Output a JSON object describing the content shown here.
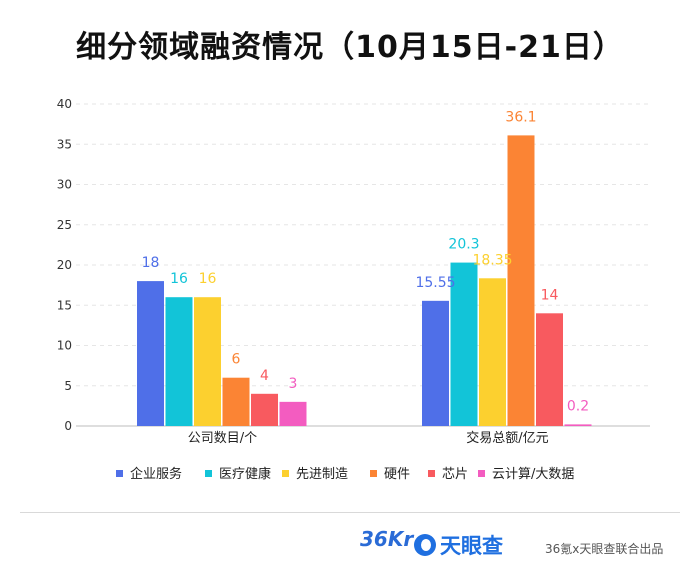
{
  "title": "细分领域融资情况（10月15日-21日）",
  "footer": {
    "logo_36kr": "36Kr",
    "logo_tyc": "天眼查",
    "credit": "36氪x天眼查联合出品"
  },
  "chart_data": {
    "type": "bar",
    "categories": [
      "公司数目/个",
      "交易总额/亿元"
    ],
    "series": [
      {
        "name": "企业服务",
        "color": "#4f6fe8",
        "values": [
          18,
          15.55
        ]
      },
      {
        "name": "医疗健康",
        "color": "#12c4d8",
        "values": [
          16,
          20.3
        ]
      },
      {
        "name": "先进制造",
        "color": "#fcd02f",
        "values": [
          16,
          18.35
        ]
      },
      {
        "name": "硬件",
        "color": "#fb8434",
        "values": [
          6,
          36.1
        ]
      },
      {
        "name": "芯片",
        "color": "#f85a5f",
        "values": [
          4,
          14
        ]
      },
      {
        "name": "云计算/大数据",
        "color": "#f35cc0",
        "values": [
          3,
          0.2
        ]
      }
    ],
    "data_labels": [
      [
        "18",
        "16",
        "16",
        "6",
        "4",
        "3"
      ],
      [
        "15.55",
        "20.3",
        "18.35",
        "36.1",
        "14",
        "0.2"
      ]
    ],
    "yticks": [
      "0",
      "5",
      "10",
      "15",
      "20",
      "25",
      "30",
      "35",
      "40"
    ],
    "ylim": [
      0,
      40
    ],
    "grid": true,
    "legend_position": "bottom"
  }
}
